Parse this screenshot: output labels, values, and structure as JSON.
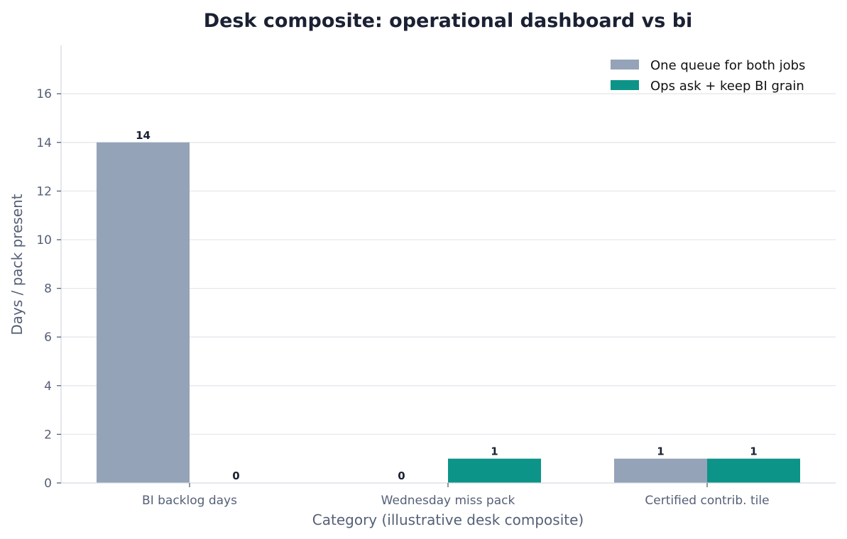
{
  "chart_data": {
    "type": "bar",
    "title": "Desk composite: operational dashboard vs bi",
    "xlabel": "Category (illustrative desk composite)",
    "ylabel": "Days / pack present",
    "categories": [
      "BI backlog days",
      "Wednesday miss pack",
      "Certified contrib. tile"
    ],
    "series": [
      {
        "name": "One queue for both jobs",
        "color": "#94a3b8",
        "values": [
          14,
          0,
          1
        ]
      },
      {
        "name": "Ops ask + keep BI grain",
        "color": "#0d9488",
        "values": [
          0,
          1,
          1
        ]
      }
    ],
    "ylim": [
      0,
      18
    ],
    "yticks": [
      0,
      2,
      4,
      6,
      8,
      10,
      12,
      14,
      16
    ],
    "grid": true,
    "legend_position": "top-right"
  }
}
